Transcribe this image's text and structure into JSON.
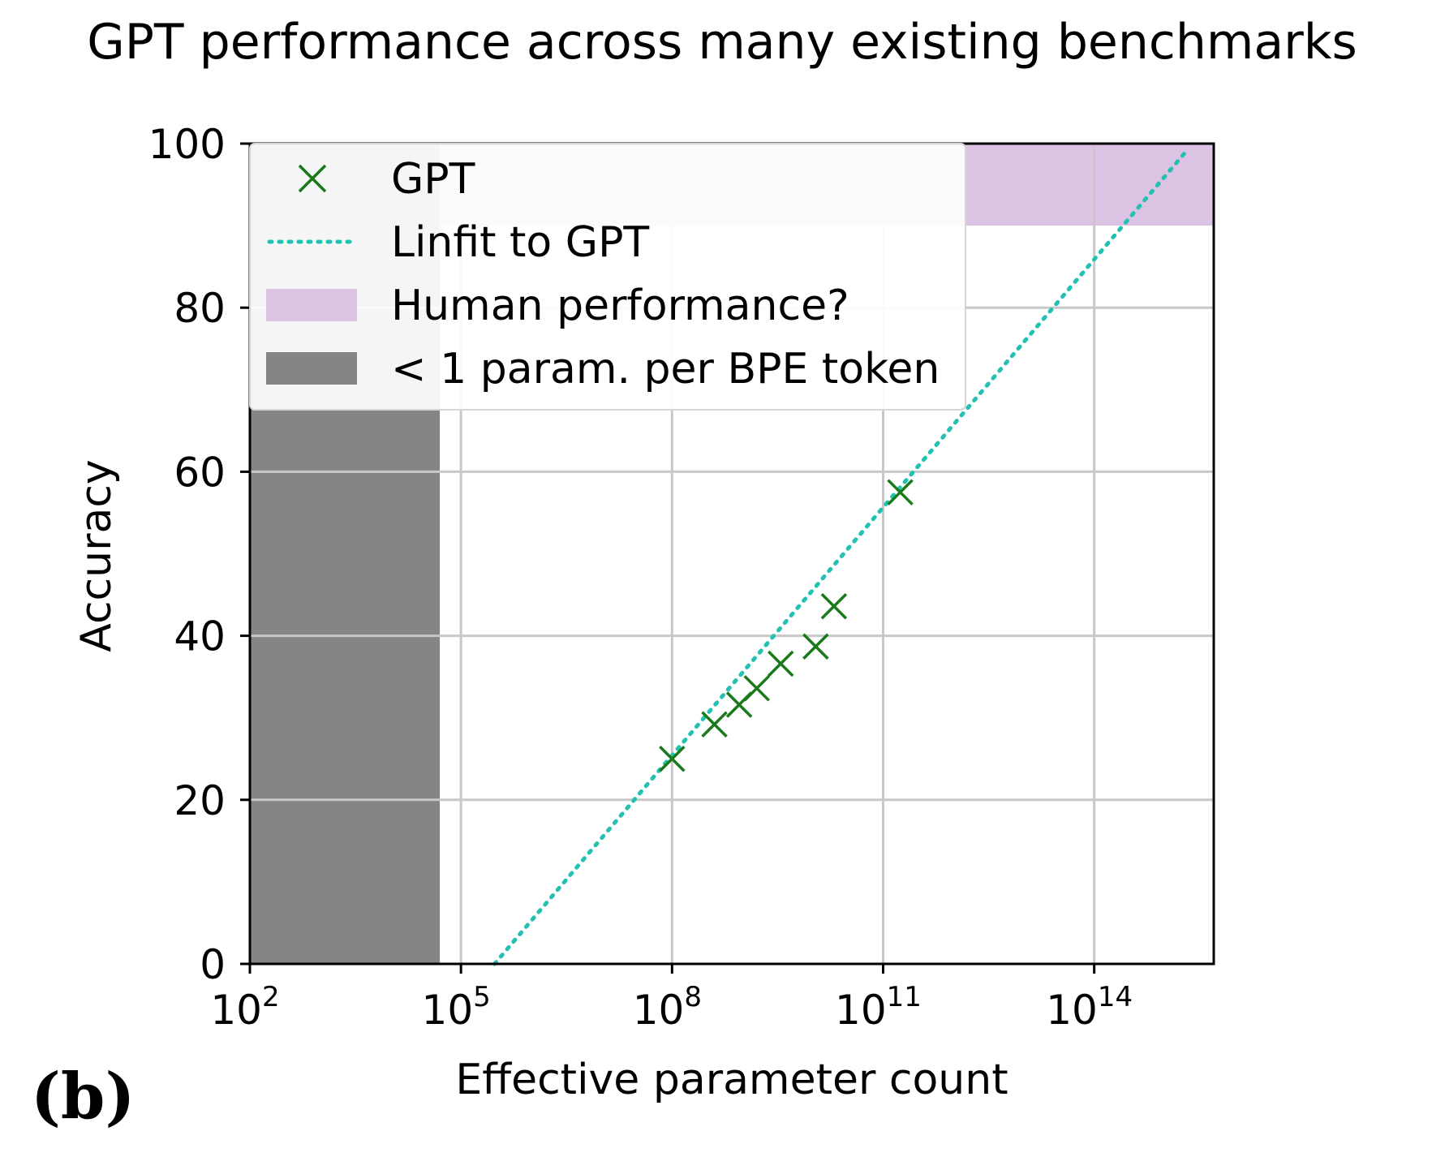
{
  "panel_label": "(b)",
  "chart_data": {
    "type": "scatter",
    "title": "GPT performance across many existing benchmarks",
    "xlabel": "Effective parameter count",
    "ylabel": "Accuracy",
    "xscale": "log",
    "xlim": [
      100,
      5000000000000000.0
    ],
    "ylim": [
      0,
      100
    ],
    "x_ticks": [
      {
        "value": 100,
        "base": "10",
        "exp": "2"
      },
      {
        "value": 100000,
        "base": "10",
        "exp": "5"
      },
      {
        "value": 100000000,
        "base": "10",
        "exp": "8"
      },
      {
        "value": 100000000000,
        "base": "10",
        "exp": "11"
      },
      {
        "value": 100000000000000,
        "base": "10",
        "exp": "14"
      }
    ],
    "y_ticks": [
      "0",
      "20",
      "40",
      "60",
      "80",
      "100"
    ],
    "grid": true,
    "legend": {
      "position": "top-left",
      "entries": [
        {
          "label": "GPT",
          "kind": "marker"
        },
        {
          "label": "Linfit to GPT",
          "kind": "line"
        },
        {
          "label": "Human performance?",
          "kind": "patch-human"
        },
        {
          "label": "< 1 param. per BPE token",
          "kind": "patch-bpe"
        }
      ]
    },
    "series": [
      {
        "name": "GPT",
        "marker": "x",
        "color": "#1a7a1a",
        "points": [
          {
            "x": 100000000.0,
            "y": 25.0
          },
          {
            "x": 400000000.0,
            "y": 29.2
          },
          {
            "x": 900000000.0,
            "y": 31.6
          },
          {
            "x": 1600000000.0,
            "y": 33.6
          },
          {
            "x": 3500000000.0,
            "y": 36.6
          },
          {
            "x": 11000000000.0,
            "y": 38.7
          },
          {
            "x": 20000000000.0,
            "y": 43.6
          },
          {
            "x": 175000000000.0,
            "y": 57.5
          }
        ]
      },
      {
        "name": "Linfit to GPT",
        "style": "dotted",
        "color": "#22c1b2",
        "points": [
          {
            "x": 300000.0,
            "y": 0
          },
          {
            "x": 2000000000000000.0,
            "y": 99
          }
        ]
      }
    ],
    "regions": [
      {
        "name": "Human performance?",
        "color": "#dcc3e3",
        "x_from": 100,
        "x_to": 5000000000000000.0,
        "y_from": 90,
        "y_to": 100
      },
      {
        "name": "< 1 param. per BPE token",
        "color": "#858487",
        "x_from": 100,
        "x_to": 50000,
        "y_from": 0,
        "y_to": 100
      }
    ]
  }
}
